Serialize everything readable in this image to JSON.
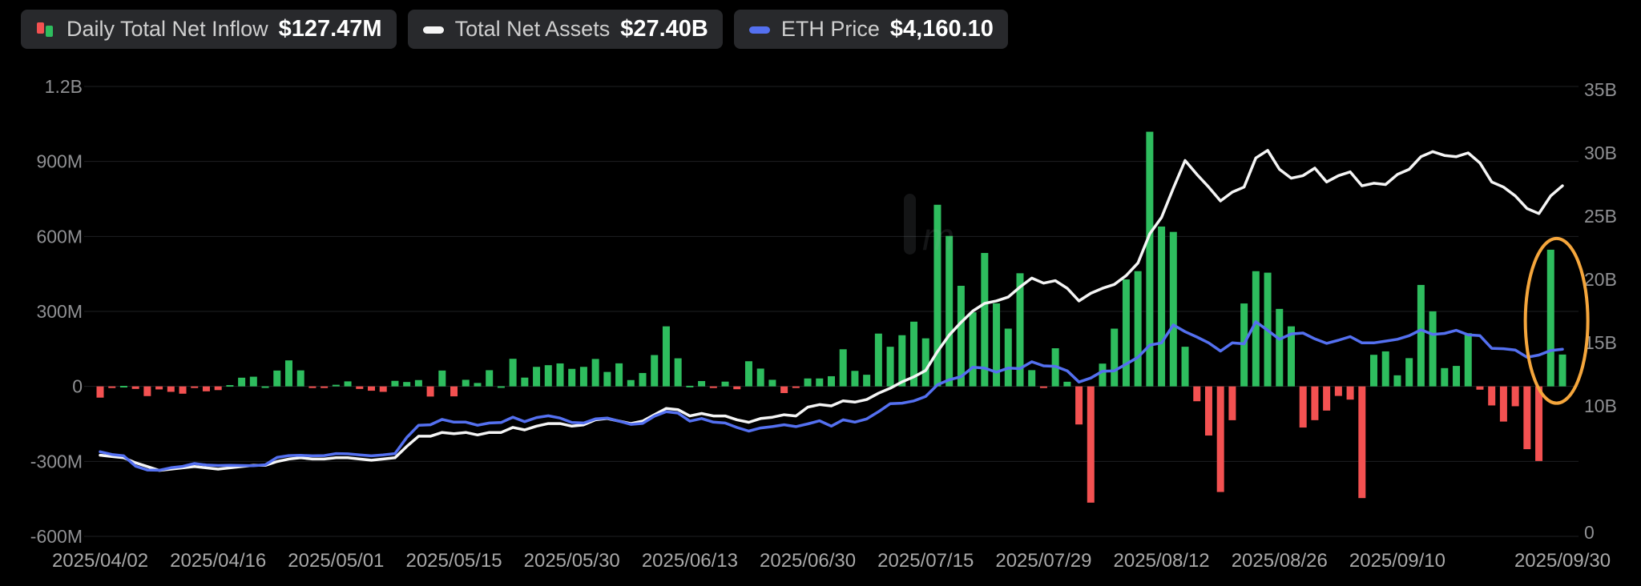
{
  "colors": {
    "positive": "#2ebd5e",
    "negative": "#f35151",
    "net_assets_line": "#f5f5f5",
    "eth_price_line": "#5470f0",
    "highlight": "#f5a63c",
    "grid": "#1e1f22",
    "axis_text": "#8f9093",
    "x_axis_text": "#a8a8a8"
  },
  "legend": {
    "items": [
      {
        "label": "Daily Total Net Inflow",
        "value": "$127.47M"
      },
      {
        "label": "Total Net Assets",
        "value": "$27.40B"
      },
      {
        "label": "ETH Price",
        "value": "$4,160.10"
      }
    ]
  },
  "watermark": {
    "text": "m"
  },
  "chart_data": {
    "type": "mixed",
    "x": [
      "2025/04/02",
      "2025/04/03",
      "2025/04/04",
      "2025/04/07",
      "2025/04/08",
      "2025/04/09",
      "2025/04/10",
      "2025/04/11",
      "2025/04/14",
      "2025/04/15",
      "2025/04/16",
      "2025/04/17",
      "2025/04/21",
      "2025/04/22",
      "2025/04/23",
      "2025/04/24",
      "2025/04/25",
      "2025/04/28",
      "2025/04/29",
      "2025/04/30",
      "2025/05/01",
      "2025/05/02",
      "2025/05/05",
      "2025/05/06",
      "2025/05/07",
      "2025/05/08",
      "2025/05/09",
      "2025/05/12",
      "2025/05/13",
      "2025/05/14",
      "2025/05/15",
      "2025/05/16",
      "2025/05/19",
      "2025/05/20",
      "2025/05/21",
      "2025/05/22",
      "2025/05/23",
      "2025/05/27",
      "2025/05/28",
      "2025/05/29",
      "2025/05/30",
      "2025/06/02",
      "2025/06/03",
      "2025/06/04",
      "2025/06/05",
      "2025/06/06",
      "2025/06/09",
      "2025/06/10",
      "2025/06/11",
      "2025/06/12",
      "2025/06/13",
      "2025/06/16",
      "2025/06/17",
      "2025/06/18",
      "2025/06/20",
      "2025/06/23",
      "2025/06/24",
      "2025/06/25",
      "2025/06/26",
      "2025/06/27",
      "2025/06/30",
      "2025/07/01",
      "2025/07/02",
      "2025/07/03",
      "2025/07/07",
      "2025/07/08",
      "2025/07/09",
      "2025/07/10",
      "2025/07/11",
      "2025/07/14",
      "2025/07/15",
      "2025/07/16",
      "2025/07/17",
      "2025/07/18",
      "2025/07/21",
      "2025/07/22",
      "2025/07/23",
      "2025/07/24",
      "2025/07/25",
      "2025/07/28",
      "2025/07/29",
      "2025/07/30",
      "2025/07/31",
      "2025/08/01",
      "2025/08/04",
      "2025/08/05",
      "2025/08/06",
      "2025/08/07",
      "2025/08/08",
      "2025/08/11",
      "2025/08/12",
      "2025/08/13",
      "2025/08/14",
      "2025/08/15",
      "2025/08/18",
      "2025/08/19",
      "2025/08/20",
      "2025/08/21",
      "2025/08/22",
      "2025/08/25",
      "2025/08/26",
      "2025/08/27",
      "2025/08/28",
      "2025/08/29",
      "2025/09/02",
      "2025/09/03",
      "2025/09/04",
      "2025/09/05",
      "2025/09/08",
      "2025/09/09",
      "2025/09/10",
      "2025/09/11",
      "2025/09/12",
      "2025/09/15",
      "2025/09/16",
      "2025/09/17",
      "2025/09/18",
      "2025/09/19",
      "2025/09/22",
      "2025/09/23",
      "2025/09/24",
      "2025/09/25",
      "2025/09/26",
      "2025/09/29",
      "2025/09/30"
    ],
    "x_tick_indices": [
      0,
      10,
      20,
      30,
      40,
      50,
      60,
      70,
      80,
      90,
      100,
      110,
      124
    ],
    "x_tick_labels": [
      "2025/04/02",
      "2025/04/16",
      "2025/05/01",
      "2025/05/15",
      "2025/05/30",
      "2025/06/13",
      "2025/06/30",
      "2025/07/15",
      "2025/07/29",
      "2025/08/12",
      "2025/08/26",
      "2025/09/10",
      "2025/09/30"
    ],
    "left_axis": {
      "tick_labels": [
        "1.2B",
        "900M",
        "600M",
        "300M",
        "0",
        "-300M",
        "-600M"
      ],
      "tick_values_musd": [
        1200,
        900,
        600,
        300,
        0,
        -300,
        -600
      ],
      "range_musd": [
        -600,
        1200
      ]
    },
    "right_axis": {
      "tick_labels": [
        "35B",
        "30B",
        "25B",
        "20B",
        "15B",
        "10B",
        "0"
      ],
      "tick_values_busd": [
        35,
        30,
        25,
        20,
        15,
        10,
        0
      ],
      "range_busd": [
        0,
        35
      ]
    },
    "eth_price_axis_range_usd": [
      0,
      10000
    ],
    "series": [
      {
        "name": "Daily Total Net Inflow",
        "type": "bar",
        "unit": "USD millions",
        "values": [
          -44.9,
          -3.6,
          2.0,
          -10.1,
          -38.8,
          -12.1,
          -21.8,
          -29.2,
          -6.4,
          -19.7,
          -14.8,
          5.2,
          34.8,
          38.8,
          0.3,
          63.5,
          104.1,
          64.1,
          -5.4,
          -2.4,
          6.5,
          20.1,
          -10.2,
          -17.3,
          -21.8,
          22.2,
          17.6,
          25.3,
          -40.6,
          63.5,
          -39.8,
          26.4,
          13.7,
          64.8,
          0.6,
          110.5,
          35.2,
          78.2,
          84.9,
          91.9,
          70.2,
          78.2,
          109.8,
          57.8,
          92.2,
          25.3,
          53.6,
          125.4,
          240.3,
          112.4,
          2.5,
          21.4,
          -2.1,
          19.1,
          -11.3,
          100.7,
          71.3,
          26.4,
          -26.7,
          -3.6,
          31.8,
          31.8,
          40.7,
          148.6,
          62.1,
          46.6,
          211.3,
          158.6,
          204.8,
          259.0,
          192.3,
          726.7,
          602.0,
          402.5,
          296.6,
          533.9,
          332.2,
          231.2,
          452.7,
          65.0,
          -1.8,
          152.6,
          18.6,
          -152.3,
          -465.1,
          91.2,
          231.1,
          428.0,
          461.1,
          1018.9,
          639.6,
          618.1,
          158.7,
          -59.4,
          -196.6,
          -422.4,
          -135.3,
          331.8,
          461.0,
          455.0,
          310.0,
          240.3,
          -164.6,
          -135.1,
          -96.8,
          -38.2,
          -52.9,
          -446.8,
          126.4,
          140.1,
          44.3,
          113.0,
          405.9,
          300.4,
          73.2,
          81.9,
          213.0,
          -13.1,
          -76.2,
          -140.7,
          -79.4,
          -251.2,
          -298.5,
          546.9,
          127.47
        ]
      },
      {
        "name": "Total Net Assets",
        "type": "line",
        "unit": "USD billions",
        "values": [
          6.1,
          6.0,
          5.9,
          5.5,
          5.2,
          4.9,
          5.0,
          5.1,
          5.2,
          5.1,
          5.0,
          5.1,
          5.2,
          5.3,
          5.3,
          5.6,
          5.8,
          5.9,
          5.8,
          5.8,
          5.9,
          5.9,
          5.8,
          5.7,
          5.8,
          5.9,
          6.8,
          7.6,
          7.6,
          7.9,
          7.8,
          7.9,
          7.7,
          7.9,
          7.9,
          8.3,
          8.1,
          8.4,
          8.6,
          8.6,
          8.4,
          8.5,
          8.9,
          9.0,
          8.8,
          8.6,
          8.8,
          9.3,
          9.8,
          9.7,
          9.2,
          9.4,
          9.2,
          9.2,
          8.9,
          8.7,
          9.0,
          9.1,
          9.3,
          9.2,
          9.9,
          10.1,
          10.0,
          10.4,
          10.3,
          10.5,
          11.0,
          11.4,
          11.9,
          12.3,
          12.8,
          14.3,
          15.6,
          16.6,
          17.5,
          18.1,
          18.3,
          18.6,
          19.4,
          20.1,
          19.7,
          19.9,
          19.3,
          18.3,
          18.9,
          19.3,
          19.6,
          20.3,
          21.3,
          23.6,
          24.9,
          27.2,
          29.4,
          28.3,
          27.3,
          26.2,
          26.9,
          27.3,
          29.6,
          30.2,
          28.7,
          28.0,
          28.2,
          28.8,
          27.7,
          28.2,
          28.5,
          27.4,
          27.6,
          27.5,
          28.3,
          28.7,
          29.7,
          30.1,
          29.8,
          29.7,
          30.0,
          29.2,
          27.7,
          27.3,
          26.6,
          25.6,
          25.2,
          26.6,
          27.4
        ]
      },
      {
        "name": "ETH Price",
        "type": "line",
        "unit": "USD",
        "values": [
          1880,
          1820,
          1790,
          1560,
          1475,
          1470,
          1525,
          1555,
          1620,
          1585,
          1575,
          1580,
          1575,
          1570,
          1590,
          1755,
          1795,
          1800,
          1790,
          1795,
          1840,
          1835,
          1810,
          1790,
          1810,
          1840,
          2200,
          2470,
          2480,
          2600,
          2540,
          2540,
          2470,
          2520,
          2530,
          2650,
          2550,
          2640,
          2680,
          2630,
          2530,
          2520,
          2610,
          2630,
          2560,
          2490,
          2510,
          2670,
          2770,
          2740,
          2560,
          2620,
          2540,
          2520,
          2420,
          2340,
          2410,
          2440,
          2480,
          2440,
          2500,
          2570,
          2450,
          2590,
          2540,
          2610,
          2770,
          2950,
          2960,
          3010,
          3110,
          3370,
          3480,
          3550,
          3760,
          3740,
          3650,
          3740,
          3730,
          3880,
          3790,
          3780,
          3680,
          3430,
          3520,
          3670,
          3680,
          3830,
          3980,
          4250,
          4300,
          4700,
          4550,
          4430,
          4300,
          4120,
          4300,
          4280,
          4770,
          4580,
          4380,
          4500,
          4520,
          4390,
          4290,
          4360,
          4440,
          4300,
          4300,
          4340,
          4380,
          4460,
          4590,
          4490,
          4510,
          4580,
          4480,
          4460,
          4180,
          4170,
          4140,
          3980,
          4030,
          4130,
          4160.1
        ]
      }
    ],
    "annotation": {
      "shape": "ellipse",
      "color": "#f5a63c",
      "note": "highlights final two sessions"
    }
  }
}
